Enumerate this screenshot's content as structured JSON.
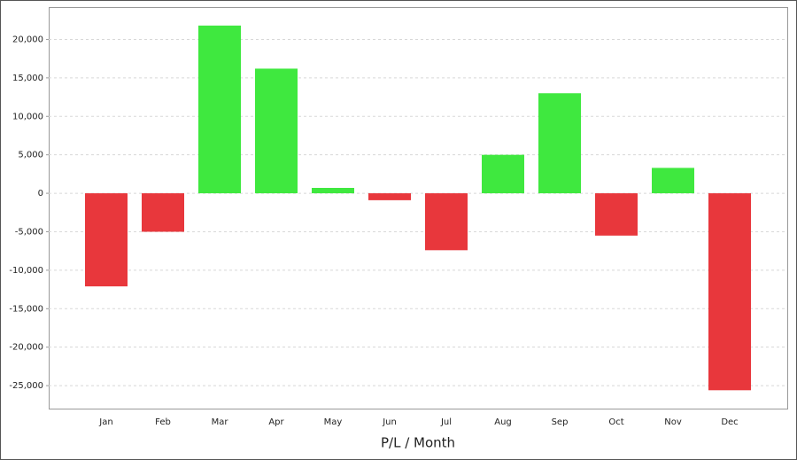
{
  "chart_data": {
    "type": "bar",
    "x_label": "P/L / Month",
    "categories": [
      "Jan",
      "Feb",
      "Mar",
      "Apr",
      "May",
      "Jun",
      "Jul",
      "Aug",
      "Sep",
      "Oct",
      "Nov",
      "Dec"
    ],
    "values": [
      -12100,
      -5000,
      21800,
      16200,
      700,
      -900,
      -7400,
      5000,
      13000,
      -5500,
      3300,
      -25600
    ],
    "positive_color": "#3fe83f",
    "negative_color": "#e8373c",
    "ylim": [
      -28100,
      24200
    ],
    "yticks": [
      {
        "value": 20000,
        "label": "20,000"
      },
      {
        "value": 15000,
        "label": "15,000"
      },
      {
        "value": 10000,
        "label": "10,000"
      },
      {
        "value": 5000,
        "label": "5,000"
      },
      0,
      {
        "value": -5000,
        "label": "-5,000"
      },
      {
        "value": -10000,
        "label": "-10,000"
      },
      {
        "value": -15000,
        "label": "-15,000"
      },
      {
        "value": -20000,
        "label": "-20,000"
      },
      {
        "value": -25000,
        "label": "-25,000"
      }
    ],
    "grid": true
  }
}
